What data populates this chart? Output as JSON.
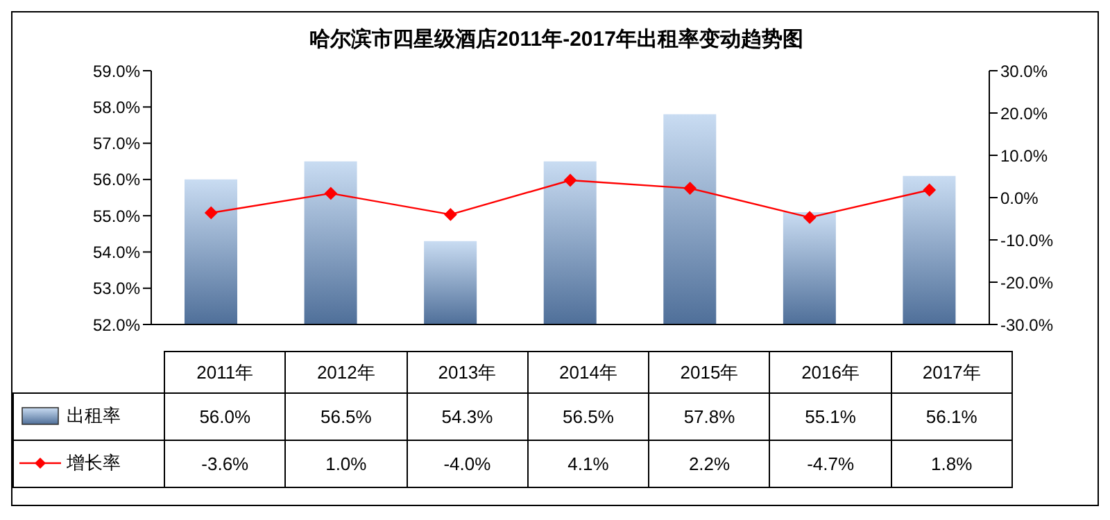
{
  "chart_data": {
    "type": "bar",
    "title": "哈尔滨市四星级酒店2011年-2017年出租率变动趋势图",
    "categories": [
      "2011年",
      "2012年",
      "2013年",
      "2014年",
      "2015年",
      "2016年",
      "2017年"
    ],
    "series": [
      {
        "name": "出租率",
        "color": "#4f6f99",
        "values": [
          56.0,
          56.5,
          54.3,
          56.5,
          57.8,
          55.1,
          56.1
        ],
        "value_labels": [
          "56.0%",
          "56.5%",
          "54.3%",
          "56.5%",
          "57.8%",
          "55.1%",
          "56.1%"
        ]
      },
      {
        "name": "增长率",
        "type": "line",
        "axis": "y2",
        "color": "#ff0000",
        "marker": "diamond",
        "values": [
          -3.6,
          1.0,
          -4.0,
          4.1,
          2.2,
          -4.7,
          1.8
        ],
        "value_labels": [
          "-3.6%",
          "1.0%",
          "-4.0%",
          "4.1%",
          "2.2%",
          "-4.7%",
          "1.8%"
        ]
      }
    ],
    "ylim": [
      52,
      59
    ],
    "yticks": [
      {
        "value": 52,
        "label": "52.0%"
      },
      {
        "value": 53,
        "label": "53.0%"
      },
      {
        "value": 54,
        "label": "54.0%"
      },
      {
        "value": 55,
        "label": "55.0%"
      },
      {
        "value": 56,
        "label": "56.0%"
      },
      {
        "value": 57,
        "label": "57.0%"
      },
      {
        "value": 58,
        "label": "58.0%"
      },
      {
        "value": 59,
        "label": "59.0%"
      }
    ],
    "y2lim": [
      -30,
      30
    ],
    "y2ticks": [
      {
        "value": -30,
        "label": "-30.0%"
      },
      {
        "value": -20,
        "label": "-20.0%"
      },
      {
        "value": -10,
        "label": "-10.0%"
      },
      {
        "value": 0,
        "label": "0.0%"
      },
      {
        "value": 10,
        "label": "10.0%"
      },
      {
        "value": 20,
        "label": "20.0%"
      },
      {
        "value": 30,
        "label": "30.0%"
      }
    ],
    "legend": "bottom left",
    "grid": false
  }
}
